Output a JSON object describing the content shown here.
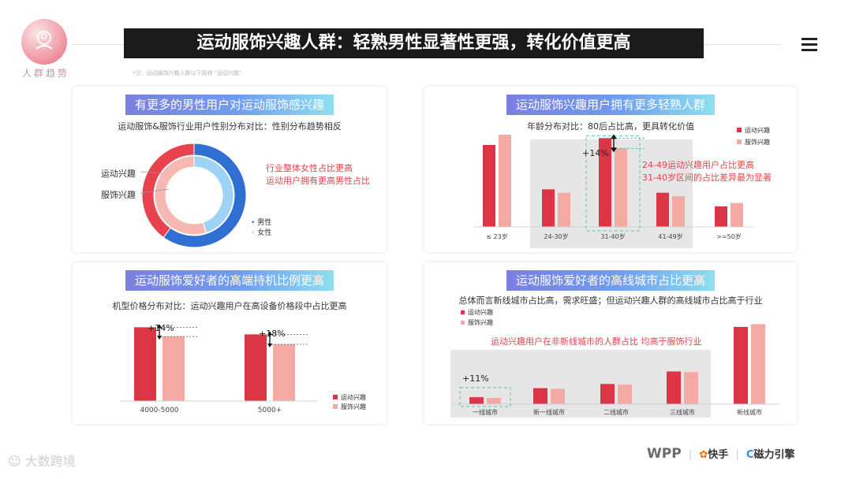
{
  "header": {
    "brand_label": "人群趋势",
    "title": "运动服饰兴趣人群：轻熟男性显著性更强，转化价值更高",
    "note": "*注：运动服饰兴趣人群以下简称 \"运动兴趣\"",
    "menu_icon": "hamburger-icon"
  },
  "panels": {
    "gender": {
      "title": "有更多的男性用户对运动服饰感兴趣",
      "subtitle": "运动服饰&服饰行业用户性别分布对比：性别分布趋势相反",
      "ring_outer_label": "运动兴趣",
      "ring_inner_label": "服饰兴趣",
      "note_lines": [
        "行业整体女性占比更高",
        "运动用户拥有更高男性占比"
      ],
      "legend": [
        "男性",
        "女性"
      ]
    },
    "age": {
      "title": "运动服饰兴趣用户拥有更多轻熟人群",
      "subtitle": "年龄分布对比：80后占比高，更具转化价值",
      "legend": [
        "运动兴趣",
        "服饰兴趣"
      ],
      "delta": "+14%",
      "note_lines": [
        "24-49运动兴趣用户占比更高",
        "31-40岁区间的占比差异最为显著"
      ]
    },
    "device": {
      "title": "运动服饰爱好者的高端持机比例更高",
      "subtitle": "机型价格分布对比：运动兴趣用户在高设备价格段中占比更高",
      "legend": [
        "运动兴趣",
        "服饰兴趣"
      ],
      "deltas": [
        "+14%",
        "+18%"
      ]
    },
    "city": {
      "title": "运动服饰爱好者的高线城市占比更高",
      "subtitle": "总体而言新线城市占比高，需求旺盛；但运动兴趣人群的高线城市占比高于行业",
      "legend": [
        "运动兴趣",
        "服饰兴趣"
      ],
      "delta": "+11%",
      "note": "运动兴趣用户在非新线城市的人群占比  均高于服饰行业"
    }
  },
  "footer": {
    "logos": [
      "WPP",
      "快手",
      "磁力引擎"
    ],
    "watermark": "大数跨境"
  },
  "colors": {
    "sport": "#dc3545",
    "apparel": "#f4aaa2",
    "male_outer": "#2f6fd1",
    "female_outer": "#e8424e",
    "male_inner": "#9fd3f5",
    "female_inner": "#f7b8b3",
    "highlight_bg": "#e6e6e6",
    "note_red": "#e0454e"
  },
  "chart_data": [
    {
      "type": "pie",
      "title": "有更多的男性用户对运动服饰感兴趣",
      "categories": [
        "男性",
        "女性"
      ],
      "series": [
        {
          "name": "运动兴趣",
          "values": [
            60,
            40
          ]
        },
        {
          "name": "服饰兴趣",
          "values": [
            45,
            55
          ]
        }
      ]
    },
    {
      "type": "bar",
      "title": "运动服饰兴趣用户拥有更多轻熟人群",
      "categories": [
        "≤ 23岁",
        "24-30岁",
        "31-40岁",
        "41-49岁",
        ">=50岁"
      ],
      "series": [
        {
          "name": "运动兴趣",
          "values": [
            24,
            11,
            26,
            10,
            6
          ]
        },
        {
          "name": "服饰兴趣",
          "values": [
            27,
            10,
            23,
            9,
            7
          ]
        }
      ],
      "ylim": [
        0,
        30
      ]
    },
    {
      "type": "bar",
      "title": "运动服饰爱好者的高端持机比例更高",
      "categories": [
        "4000-5000",
        "5000+"
      ],
      "series": [
        {
          "name": "运动兴趣",
          "values": [
            10.4,
            9.4
          ]
        },
        {
          "name": "服饰兴趣",
          "values": [
            9.1,
            8.0
          ]
        }
      ],
      "ylim": [
        0,
        12
      ]
    },
    {
      "type": "bar",
      "title": "运动服饰爱好者的高线城市占比更高",
      "categories": [
        "一线城市",
        "新一线城市",
        "二线城市",
        "三线城市",
        "新线城市"
      ],
      "series": [
        {
          "name": "运动兴趣",
          "values": [
            5.0,
            11.5,
            14.5,
            23.5,
            55.5
          ]
        },
        {
          "name": "服饰兴趣",
          "values": [
            4.5,
            11.0,
            14.0,
            23.0,
            57.5
          ]
        }
      ],
      "ylim": [
        0,
        60
      ]
    }
  ]
}
